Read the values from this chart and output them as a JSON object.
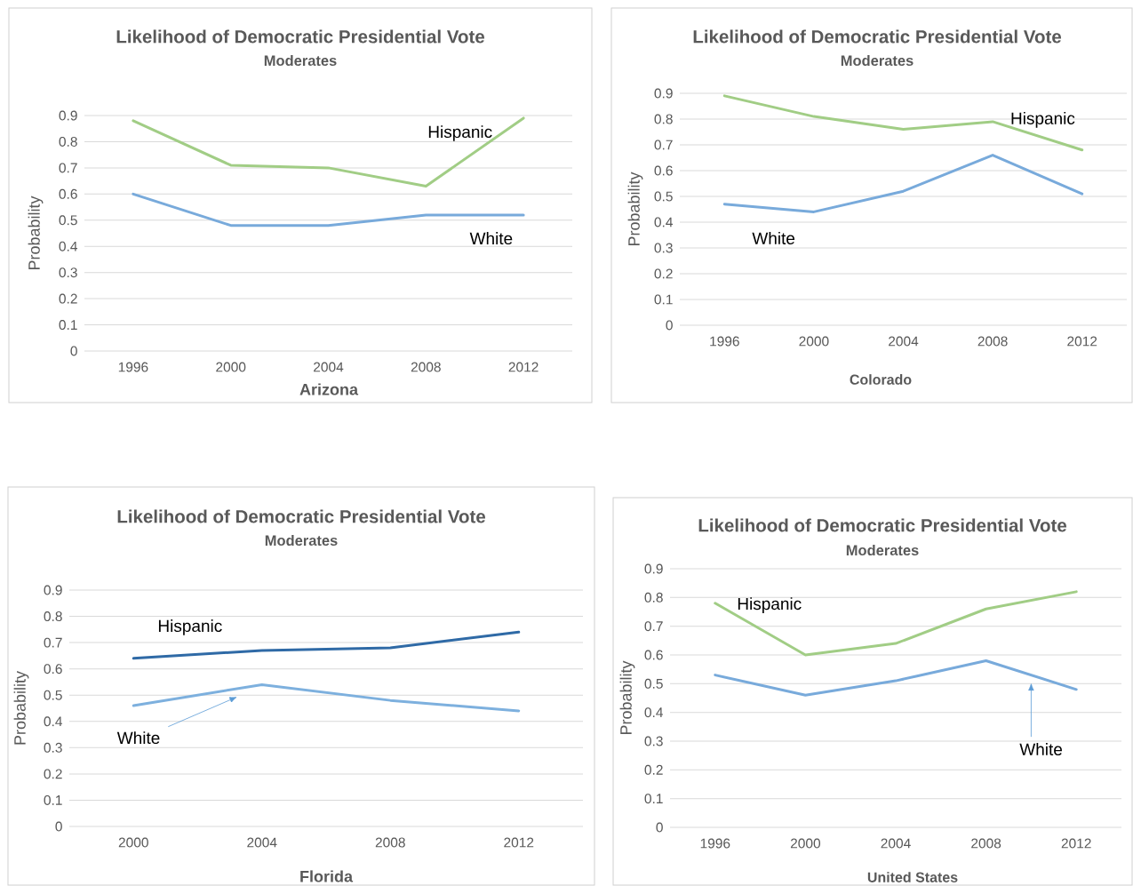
{
  "chart_data": [
    {
      "type": "line",
      "title": "Likelihood of Democratic Presidential Vote",
      "subtitle": "Moderates",
      "xlabel": "Arizona",
      "ylabel": "Probability",
      "categories": [
        "1996",
        "2000",
        "2004",
        "2008",
        "2012"
      ],
      "series": [
        {
          "name": "Hispanic",
          "color": "#A1CD85",
          "values": [
            0.88,
            0.71,
            0.7,
            0.63,
            0.89
          ]
        },
        {
          "name": "White",
          "color": "#78AADB",
          "values": [
            0.6,
            0.48,
            0.48,
            0.52,
            0.52
          ]
        }
      ],
      "ylim": [
        0,
        0.9
      ],
      "yticks": [
        0,
        0.1,
        0.2,
        0.3,
        0.4,
        0.5,
        0.6,
        0.7,
        0.8,
        0.9
      ],
      "grid": "y"
    },
    {
      "type": "line",
      "title": "Likelihood of Democratic Presidential Vote",
      "subtitle": "Moderates",
      "xlabel": "Colorado",
      "ylabel": "Probability",
      "categories": [
        "1996",
        "2000",
        "2004",
        "2008",
        "2012"
      ],
      "series": [
        {
          "name": "Hispanic",
          "color": "#A1CD85",
          "values": [
            0.89,
            0.81,
            0.76,
            0.79,
            0.68
          ]
        },
        {
          "name": "White",
          "color": "#78AADB",
          "values": [
            0.47,
            0.44,
            0.52,
            0.66,
            0.51
          ]
        }
      ],
      "ylim": [
        0,
        0.9
      ],
      "yticks": [
        0,
        0.1,
        0.2,
        0.3,
        0.4,
        0.5,
        0.6,
        0.7,
        0.8,
        0.9
      ],
      "grid": "y"
    },
    {
      "type": "line",
      "title": "Likelihood of Democratic Presidential Vote",
      "subtitle": "Moderates",
      "xlabel": "Florida",
      "ylabel": "Probability",
      "categories": [
        "2000",
        "2004",
        "2008",
        "2012"
      ],
      "series": [
        {
          "name": "Hispanic",
          "color": "#2F6AA6",
          "values": [
            0.64,
            0.67,
            0.68,
            0.74
          ]
        },
        {
          "name": "White",
          "color": "#7DB0DE",
          "values": [
            0.46,
            0.54,
            0.48,
            0.44
          ]
        }
      ],
      "ylim": [
        0,
        0.9
      ],
      "yticks": [
        0,
        0.1,
        0.2,
        0.3,
        0.4,
        0.5,
        0.6,
        0.7,
        0.8,
        0.9
      ],
      "grid": "y"
    },
    {
      "type": "line",
      "title": "Likelihood of Democratic Presidential Vote",
      "subtitle": "Moderates",
      "xlabel": "United States",
      "ylabel": "Probability",
      "categories": [
        "1996",
        "2000",
        "2004",
        "2008",
        "2012"
      ],
      "series": [
        {
          "name": "Hispanic",
          "color": "#A1CD85",
          "values": [
            0.78,
            0.6,
            0.64,
            0.76,
            0.82
          ]
        },
        {
          "name": "White",
          "color": "#78AADB",
          "values": [
            0.53,
            0.46,
            0.51,
            0.58,
            0.48
          ]
        }
      ],
      "ylim": [
        0,
        0.9
      ],
      "yticks": [
        0,
        0.1,
        0.2,
        0.3,
        0.4,
        0.5,
        0.6,
        0.7,
        0.8,
        0.9
      ],
      "grid": "y"
    }
  ]
}
